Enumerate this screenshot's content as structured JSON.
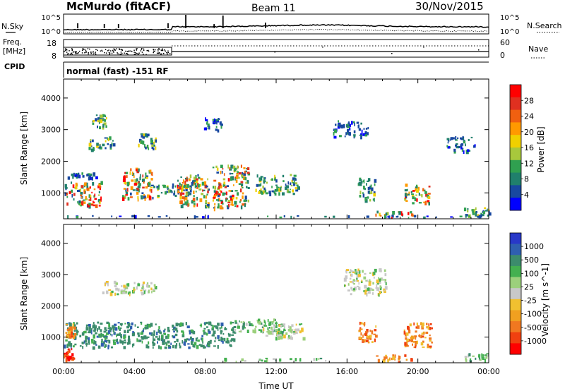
{
  "header": {
    "station": "McMurdo (fitACF)",
    "beam": "Beam 11",
    "date": "30/Nov/2015"
  },
  "panels": {
    "nsky": {
      "left_label": "N.Sky",
      "right_label": "N.Search",
      "left_ticks": [
        "10^5",
        "10^0"
      ],
      "right_ticks": [
        "10^5",
        "10^0"
      ]
    },
    "freq": {
      "left_label_line1": "Freq.",
      "left_label_line2": "[MHz]",
      "right_label": "Nave",
      "left_ticks": [
        "18",
        "8"
      ],
      "right_ticks": [
        "60",
        "0"
      ]
    },
    "cpid": {
      "left_label": "CPID",
      "program": "normal (fast) -151 RF"
    }
  },
  "chart_data": [
    {
      "type": "heatmap",
      "name": "power",
      "ylabel": "Slant Range [km]",
      "xlabel": "",
      "xlim_hours": [
        0,
        24
      ],
      "ylim_km": [
        180,
        4600
      ],
      "ytick_values": [
        1000,
        2000,
        3000,
        4000
      ],
      "colorbar": {
        "label": "Power [dB]",
        "ticks": [
          "28",
          "24",
          "20",
          "16",
          "12",
          "8",
          "4"
        ],
        "colors": [
          "#ff0000",
          "#e03020",
          "#f06010",
          "#ff9900",
          "#f0d000",
          "#a8c83c",
          "#30a050",
          "#20806c",
          "#1848a0",
          "#0000ff"
        ]
      },
      "regions": [
        {
          "x0": 0.0,
          "x1": 2.1,
          "y0": 600,
          "y1": 1400,
          "level": "high"
        },
        {
          "x0": 0.2,
          "x1": 1.8,
          "y0": 1500,
          "y1": 1650,
          "level": "low"
        },
        {
          "x0": 1.4,
          "x1": 2.8,
          "y0": 2400,
          "y1": 2800,
          "level": "mid"
        },
        {
          "x0": 1.6,
          "x1": 2.4,
          "y0": 3100,
          "y1": 3500,
          "level": "mid"
        },
        {
          "x0": 3.3,
          "x1": 5.0,
          "y0": 800,
          "y1": 1800,
          "level": "high"
        },
        {
          "x0": 4.2,
          "x1": 5.2,
          "y0": 2400,
          "y1": 2900,
          "level": "mid"
        },
        {
          "x0": 5.0,
          "x1": 7.2,
          "y0": 900,
          "y1": 1300,
          "level": "mid"
        },
        {
          "x0": 6.4,
          "x1": 8.2,
          "y0": 600,
          "y1": 1600,
          "level": "high"
        },
        {
          "x0": 8.4,
          "x1": 10.4,
          "y0": 500,
          "y1": 1900,
          "level": "high"
        },
        {
          "x0": 7.9,
          "x1": 8.9,
          "y0": 3000,
          "y1": 3400,
          "level": "low"
        },
        {
          "x0": 10.8,
          "x1": 13.2,
          "y0": 1000,
          "y1": 1600,
          "level": "mid"
        },
        {
          "x0": 15.2,
          "x1": 17.2,
          "y0": 2800,
          "y1": 3300,
          "level": "low"
        },
        {
          "x0": 16.6,
          "x1": 17.6,
          "y0": 800,
          "y1": 1500,
          "level": "mid"
        },
        {
          "x0": 19.2,
          "x1": 20.6,
          "y0": 700,
          "y1": 1300,
          "level": "high"
        },
        {
          "x0": 17.4,
          "x1": 19.8,
          "y0": 200,
          "y1": 450,
          "level": "high"
        },
        {
          "x0": 22.6,
          "x1": 24.0,
          "y0": 300,
          "y1": 550,
          "level": "mid"
        },
        {
          "x0": 21.6,
          "x1": 23.2,
          "y0": 2300,
          "y1": 2800,
          "level": "low"
        },
        {
          "x0": 0.0,
          "x1": 24.0,
          "y0": 180,
          "y1": 300,
          "level": "low"
        }
      ]
    },
    {
      "type": "heatmap",
      "name": "velocity",
      "ylabel": "Slant Range [km]",
      "xlabel": "Time UT",
      "xlim_hours": [
        0,
        24
      ],
      "ylim_km": [
        180,
        4600
      ],
      "ytick_values": [
        1000,
        2000,
        3000,
        4000
      ],
      "xticks": [
        "00:00",
        "04:00",
        "08:00",
        "12:00",
        "16:00",
        "20:00",
        "00:00"
      ],
      "colorbar": {
        "label": "Velocity [m s^-1]",
        "ticks": [
          "1000",
          "500",
          "100",
          "25",
          "-25",
          "-100",
          "-500",
          "-1000"
        ],
        "colors": [
          "#2838c8",
          "#2f5fb0",
          "#3c8c6c",
          "#44b050",
          "#9cd07c",
          "#c8c8c8",
          "#f0c030",
          "#f0a020",
          "#f07820",
          "#f04010",
          "#ff0000"
        ]
      },
      "regions": [
        {
          "x0": 0.0,
          "x1": 9.6,
          "y0": 700,
          "y1": 1500,
          "level": "toward_mid"
        },
        {
          "x0": 0.1,
          "x1": 0.6,
          "y0": 1050,
          "y1": 1450,
          "level": "away_mid"
        },
        {
          "x0": 0.0,
          "x1": 0.5,
          "y0": 300,
          "y1": 650,
          "level": "away_strong"
        },
        {
          "x0": 9.6,
          "x1": 12.4,
          "y0": 1100,
          "y1": 1600,
          "level": "toward_low"
        },
        {
          "x0": 11.2,
          "x1": 13.6,
          "y0": 1000,
          "y1": 1450,
          "level": "near_zero"
        },
        {
          "x0": 2.0,
          "x1": 5.2,
          "y0": 2400,
          "y1": 2800,
          "level": "near_zero"
        },
        {
          "x0": 16.6,
          "x1": 17.6,
          "y0": 800,
          "y1": 1500,
          "level": "away_mid"
        },
        {
          "x0": 19.2,
          "x1": 20.8,
          "y0": 700,
          "y1": 1500,
          "level": "away_mid"
        },
        {
          "x0": 17.4,
          "x1": 19.6,
          "y0": 200,
          "y1": 450,
          "level": "away_mid"
        },
        {
          "x0": 22.6,
          "x1": 24.0,
          "y0": 250,
          "y1": 500,
          "level": "toward_low"
        },
        {
          "x0": 15.8,
          "x1": 18.2,
          "y0": 2400,
          "y1": 3200,
          "level": "near_zero"
        },
        {
          "x0": 9.0,
          "x1": 15.0,
          "y0": 200,
          "y1": 350,
          "level": "toward_low"
        }
      ]
    }
  ]
}
